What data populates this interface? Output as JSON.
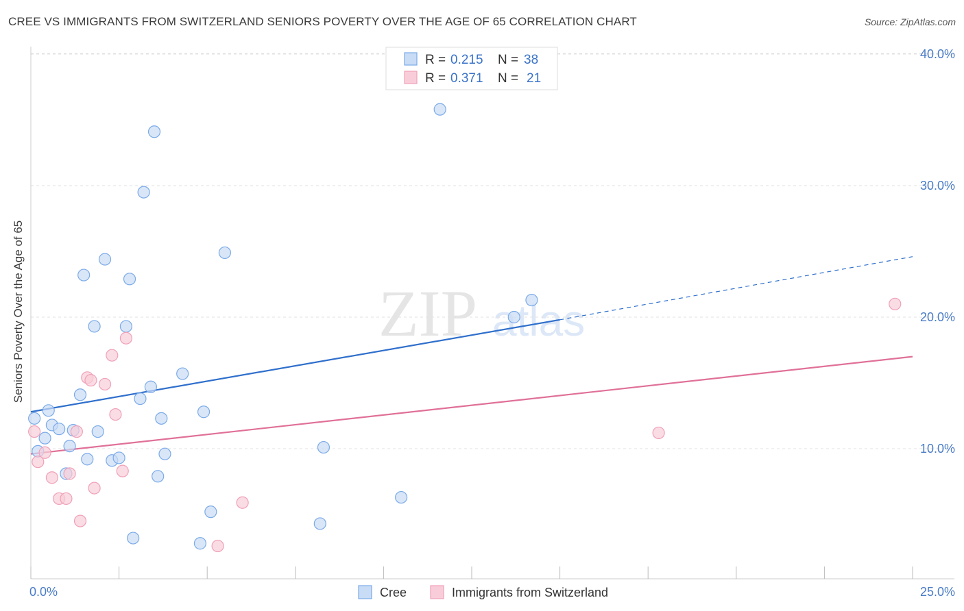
{
  "header": {
    "title": "CREE VS IMMIGRANTS FROM SWITZERLAND SENIORS POVERTY OVER THE AGE OF 65 CORRELATION CHART",
    "source": "Source: ZipAtlas.com"
  },
  "watermark": {
    "zip": "ZIP",
    "atlas": "atlas"
  },
  "chart_data": {
    "type": "scatter",
    "title": "CREE VS IMMIGRANTS FROM SWITZERLAND SENIORS POVERTY OVER THE AGE OF 65 CORRELATION CHART",
    "ylabel": "Seniors Poverty Over the Age of 65",
    "xlabel": "",
    "xlim": [
      0,
      25
    ],
    "ylim": [
      0,
      40
    ],
    "x_tick_labels": {
      "min": "0.0%",
      "max": "25.0%"
    },
    "y_ticks": [
      {
        "value": 10,
        "label": "10.0%"
      },
      {
        "value": 20,
        "label": "20.0%"
      },
      {
        "value": 30,
        "label": "30.0%"
      },
      {
        "value": 40,
        "label": "40.0%"
      }
    ],
    "grid": true,
    "legend_position": "top-center",
    "series": [
      {
        "name": "Cree",
        "color": "#7aaae8",
        "fill": "#c9dcf5",
        "line_color": "#2f6fcc",
        "R": "0.215",
        "N": "38",
        "trend": {
          "x0": 0,
          "y0": 12.8,
          "x1": 15,
          "y1": 19.8,
          "dash_to_x": 25,
          "dash_to_y": 24.6
        },
        "points": [
          [
            0.1,
            12.3
          ],
          [
            0.2,
            9.8
          ],
          [
            0.4,
            10.8
          ],
          [
            0.5,
            12.9
          ],
          [
            0.6,
            11.8
          ],
          [
            0.8,
            11.5
          ],
          [
            1.0,
            8.1
          ],
          [
            1.1,
            10.2
          ],
          [
            1.2,
            11.4
          ],
          [
            1.4,
            14.1
          ],
          [
            1.5,
            23.2
          ],
          [
            1.6,
            9.2
          ],
          [
            1.8,
            19.3
          ],
          [
            1.9,
            11.3
          ],
          [
            2.1,
            24.4
          ],
          [
            2.3,
            9.1
          ],
          [
            2.5,
            9.3
          ],
          [
            2.7,
            19.3
          ],
          [
            2.8,
            22.9
          ],
          [
            2.9,
            3.2
          ],
          [
            3.1,
            13.8
          ],
          [
            3.2,
            29.5
          ],
          [
            3.4,
            14.7
          ],
          [
            3.5,
            34.1
          ],
          [
            3.6,
            7.9
          ],
          [
            3.7,
            12.3
          ],
          [
            3.8,
            9.6
          ],
          [
            4.3,
            15.7
          ],
          [
            4.8,
            2.8
          ],
          [
            4.9,
            12.8
          ],
          [
            5.1,
            5.2
          ],
          [
            5.5,
            24.9
          ],
          [
            8.2,
            4.3
          ],
          [
            8.3,
            10.1
          ],
          [
            10.5,
            6.3
          ],
          [
            11.6,
            35.8
          ],
          [
            13.7,
            20.0
          ],
          [
            14.2,
            21.3
          ]
        ]
      },
      {
        "name": "Immigrants from Switzerland",
        "color": "#f0a0b8",
        "fill": "#f8cdd9",
        "line_color": "#e07098",
        "R": "0.371",
        "N": "21",
        "trend": {
          "x0": 0,
          "y0": 9.6,
          "x1": 25,
          "y1": 17.0
        },
        "points": [
          [
            0.1,
            11.3
          ],
          [
            0.2,
            9.0
          ],
          [
            0.4,
            9.7
          ],
          [
            0.6,
            7.8
          ],
          [
            0.8,
            6.2
          ],
          [
            1.0,
            6.2
          ],
          [
            1.1,
            8.1
          ],
          [
            1.3,
            11.3
          ],
          [
            1.4,
            4.5
          ],
          [
            1.6,
            15.4
          ],
          [
            1.7,
            15.2
          ],
          [
            1.8,
            7.0
          ],
          [
            2.1,
            14.9
          ],
          [
            2.3,
            17.1
          ],
          [
            2.4,
            12.6
          ],
          [
            2.6,
            8.3
          ],
          [
            2.7,
            18.4
          ],
          [
            5.3,
            2.6
          ],
          [
            6.0,
            5.9
          ],
          [
            17.8,
            11.2
          ],
          [
            24.5,
            21.0
          ]
        ]
      }
    ]
  },
  "legend": {
    "r_label": "R =",
    "n_label": "N ="
  }
}
